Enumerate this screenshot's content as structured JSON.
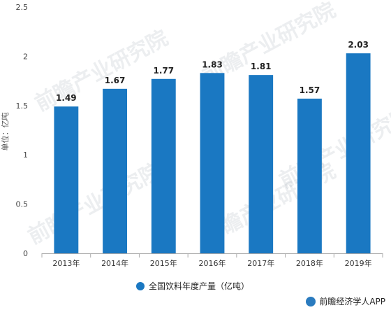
{
  "chart_data": {
    "type": "bar",
    "categories": [
      "2013年",
      "2014年",
      "2015年",
      "2016年",
      "2017年",
      "2018年",
      "2019年"
    ],
    "series": [
      {
        "name": "全国饮料年度产量（亿吨）",
        "values": [
          1.49,
          1.67,
          1.77,
          1.83,
          1.81,
          1.57,
          2.03
        ]
      }
    ],
    "data_labels": [
      "1.49",
      "1.67",
      "1.77",
      "1.83",
      "1.81",
      "1.57",
      "2.03"
    ],
    "ylabel": "单位：亿吨",
    "ylim": [
      0,
      2.5
    ],
    "yticks": [
      0,
      0.5,
      1,
      1.5,
      2,
      2.5
    ],
    "ytick_labels": [
      "0",
      "0.5",
      "1",
      "1.5",
      "2",
      "2.5"
    ],
    "grid": false,
    "legend": {
      "position": "bottom",
      "label": "全国饮料年度产量（亿吨）"
    },
    "colors": {
      "bar": "#1a78c2",
      "axis": "#aaaaaa",
      "text": "#333333"
    }
  },
  "watermark": {
    "text": "前瞻产业研究院"
  },
  "footer": {
    "brand": "前瞻经济学人APP"
  }
}
